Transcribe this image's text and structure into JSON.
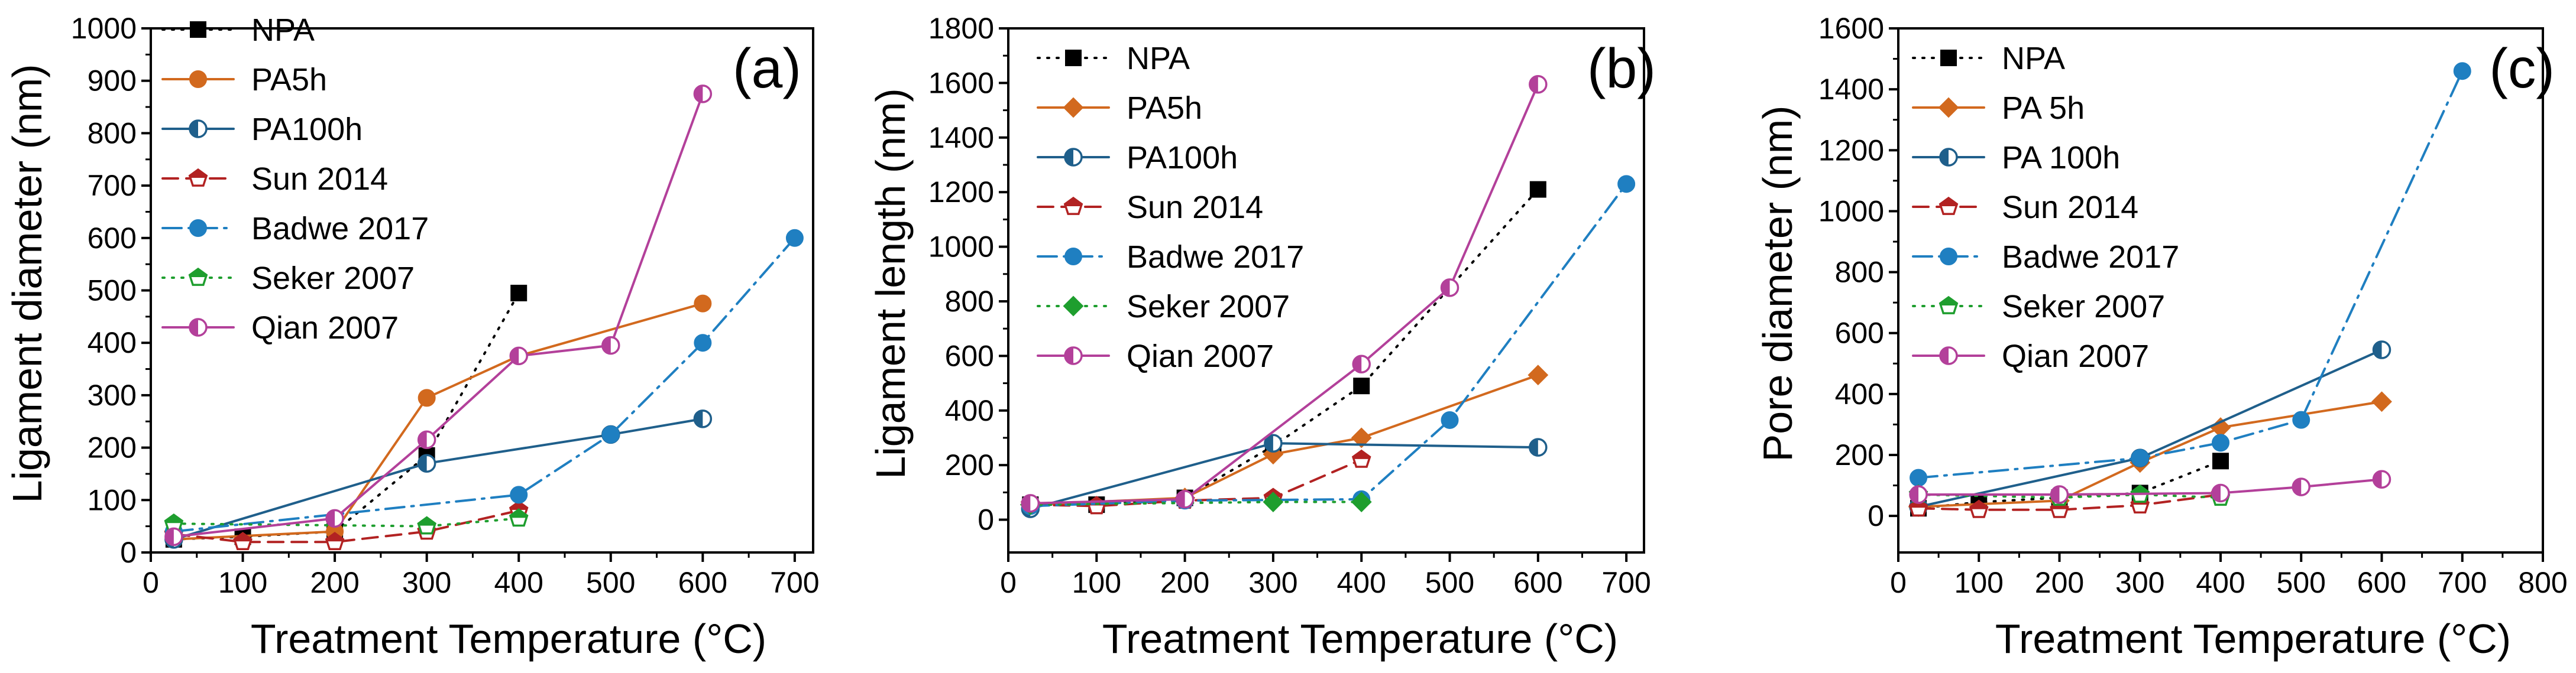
{
  "colors": {
    "NPA": "#000000",
    "PA5h": "#d2691e",
    "PA100h": "#1f5f8b",
    "Sun 2014": "#b22222",
    "Badwe 2017": "#1f7fc1",
    "Seker 2007": "#1e9e2e",
    "Qian 2007": "#b3409a"
  },
  "chart_data": [
    {
      "type": "line",
      "panel_label": "(a)",
      "title": "",
      "xlabel": "Treatment Temperature (°C)",
      "ylabel": "Ligament diameter (nm)",
      "xlim": [
        0,
        720
      ],
      "ylim": [
        0,
        1000
      ],
      "xticks": [
        0,
        100,
        200,
        300,
        400,
        500,
        600,
        700
      ],
      "yticks": [
        0,
        100,
        200,
        300,
        400,
        500,
        600,
        700,
        800,
        900,
        1000
      ],
      "legend_position": "top-left",
      "series": [
        {
          "name": "NPA",
          "color_key": "NPA",
          "dash": "dotted",
          "marker": "square",
          "x": [
            25,
            100,
            200,
            300,
            400
          ],
          "y": [
            25,
            30,
            40,
            185,
            495
          ]
        },
        {
          "name": "PA5h",
          "color_key": "PA5h",
          "dash": "solid",
          "marker": "circle",
          "x": [
            25,
            200,
            300,
            400,
            600
          ],
          "y": [
            25,
            40,
            295,
            375,
            475
          ]
        },
        {
          "name": "PA100h",
          "color_key": "PA100h",
          "dash": "solid",
          "marker": "half-circle",
          "x": [
            25,
            300,
            500,
            600
          ],
          "y": [
            25,
            170,
            225,
            255
          ]
        },
        {
          "name": "Sun 2014",
          "color_key": "Sun 2014",
          "dash": "dashed",
          "marker": "half-pentagon",
          "x": [
            25,
            100,
            200,
            300,
            400
          ],
          "y": [
            35,
            20,
            20,
            40,
            80
          ]
        },
        {
          "name": "Badwe 2017",
          "color_key": "Badwe 2017",
          "dash": "dashdot",
          "marker": "circle",
          "x": [
            25,
            400,
            500,
            600,
            700
          ],
          "y": [
            40,
            110,
            225,
            400,
            600
          ]
        },
        {
          "name": "Seker 2007",
          "color_key": "Seker 2007",
          "dash": "dotted",
          "marker": "half-pentagon",
          "x": [
            25,
            300,
            400
          ],
          "y": [
            55,
            50,
            65
          ]
        },
        {
          "name": "Qian 2007",
          "color_key": "Qian 2007",
          "dash": "solid",
          "marker": "half-circle",
          "x": [
            25,
            200,
            300,
            400,
            500,
            600
          ],
          "y": [
            30,
            65,
            215,
            375,
            395,
            875
          ]
        }
      ]
    },
    {
      "type": "line",
      "panel_label": "(b)",
      "title": "",
      "xlabel": "Treatment Temperature (°C)",
      "ylabel": "Ligament length (nm)",
      "xlim": [
        0,
        720
      ],
      "ylim": [
        -120,
        1800
      ],
      "xticks": [
        0,
        100,
        200,
        300,
        400,
        500,
        600,
        700
      ],
      "yticks": [
        0,
        200,
        400,
        600,
        800,
        1000,
        1200,
        1400,
        1600,
        1800
      ],
      "legend_position": "top-left",
      "series": [
        {
          "name": "NPA",
          "color_key": "NPA",
          "dash": "dotted",
          "marker": "square",
          "x": [
            25,
            100,
            200,
            300,
            400,
            600
          ],
          "y": [
            55,
            55,
            80,
            270,
            490,
            1210
          ]
        },
        {
          "name": "PA5h",
          "color_key": "PA5h",
          "dash": "solid",
          "marker": "diamond",
          "x": [
            25,
            200,
            300,
            400,
            600
          ],
          "y": [
            55,
            80,
            240,
            300,
            530
          ]
        },
        {
          "name": "PA100h",
          "color_key": "PA100h",
          "dash": "solid",
          "marker": "half-circle",
          "x": [
            25,
            300,
            600
          ],
          "y": [
            40,
            280,
            265
          ]
        },
        {
          "name": "Sun 2014",
          "color_key": "Sun 2014",
          "dash": "dashed",
          "marker": "half-pentagon",
          "x": [
            25,
            100,
            200,
            300,
            400
          ],
          "y": [
            55,
            50,
            70,
            80,
            220
          ]
        },
        {
          "name": "Badwe 2017",
          "color_key": "Badwe 2017",
          "dash": "dashdot",
          "marker": "circle",
          "x": [
            25,
            200,
            400,
            500,
            700
          ],
          "y": [
            50,
            70,
            75,
            365,
            1230
          ]
        },
        {
          "name": "Seker 2007",
          "color_key": "Seker 2007",
          "dash": "dotted",
          "marker": "diamond",
          "x": [
            25,
            300,
            400
          ],
          "y": [
            55,
            65,
            65
          ]
        },
        {
          "name": "Qian 2007",
          "color_key": "Qian 2007",
          "dash": "solid",
          "marker": "half-circle",
          "x": [
            25,
            200,
            400,
            500,
            600
          ],
          "y": [
            60,
            75,
            570,
            850,
            1595
          ]
        }
      ]
    },
    {
      "type": "line",
      "panel_label": "(c)",
      "title": "",
      "xlabel": "Treatment Temperature (°C)",
      "ylabel": "Pore diameter (nm)",
      "xlim": [
        0,
        800
      ],
      "ylim": [
        -120,
        1600
      ],
      "xticks": [
        0,
        100,
        200,
        300,
        400,
        500,
        600,
        700,
        800
      ],
      "yticks": [
        0,
        200,
        400,
        600,
        800,
        1000,
        1200,
        1400,
        1600
      ],
      "legend_position": "top-left",
      "series": [
        {
          "name": "NPA",
          "color_key": "NPA",
          "dash": "dotted",
          "marker": "square",
          "x": [
            25,
            100,
            200,
            300,
            400
          ],
          "y": [
            25,
            45,
            60,
            75,
            180
          ]
        },
        {
          "name": "PA 5h",
          "color_key": "PA5h",
          "dash": "solid",
          "marker": "diamond",
          "x": [
            25,
            200,
            300,
            400,
            600
          ],
          "y": [
            30,
            50,
            175,
            290,
            375
          ]
        },
        {
          "name": "PA 100h",
          "color_key": "PA100h",
          "dash": "solid",
          "marker": "half-circle",
          "x": [
            25,
            300,
            600
          ],
          "y": [
            30,
            190,
            545
          ]
        },
        {
          "name": "Sun 2014",
          "color_key": "Sun 2014",
          "dash": "dashed",
          "marker": "half-pentagon",
          "x": [
            25,
            100,
            200,
            300,
            400
          ],
          "y": [
            25,
            20,
            20,
            35,
            70
          ]
        },
        {
          "name": "Badwe 2017",
          "color_key": "Badwe 2017",
          "dash": "dashdot",
          "marker": "circle",
          "x": [
            25,
            300,
            400,
            500,
            700
          ],
          "y": [
            125,
            190,
            240,
            315,
            1460
          ]
        },
        {
          "name": "Seker 2007",
          "color_key": "Seker 2007",
          "dash": "dotted",
          "marker": "half-pentagon",
          "x": [
            25,
            200,
            300,
            400
          ],
          "y": [
            70,
            60,
            70,
            60
          ]
        },
        {
          "name": "Qian 2007",
          "color_key": "Qian 2007",
          "dash": "solid",
          "marker": "half-circle",
          "x": [
            25,
            200,
            400,
            500,
            600
          ],
          "y": [
            70,
            70,
            75,
            95,
            120
          ]
        }
      ]
    }
  ]
}
